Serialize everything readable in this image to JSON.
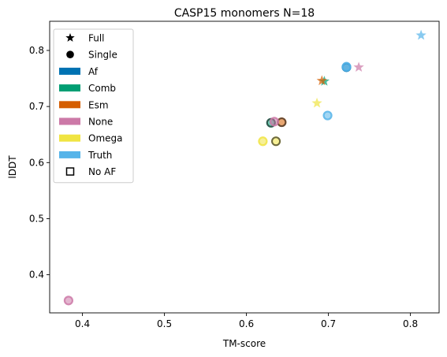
{
  "chart_data": {
    "type": "scatter",
    "title": "CASP15 monomers N=18",
    "xlabel": "TM-score",
    "ylabel": "lDDT",
    "xlim": [
      0.36,
      0.835
    ],
    "ylim": [
      0.332,
      0.852
    ],
    "xticks": [
      0.4,
      0.5,
      0.6,
      0.7,
      0.8
    ],
    "yticks": [
      0.4,
      0.5,
      0.6,
      0.7,
      0.8
    ],
    "grid": false,
    "legend_position": "top-left",
    "legend": [
      {
        "label": "Full",
        "kind": "marker",
        "marker": "star"
      },
      {
        "label": "Single",
        "kind": "marker",
        "marker": "circle"
      },
      {
        "label": "Af",
        "kind": "patch",
        "color": "#0072b2"
      },
      {
        "label": "Comb",
        "kind": "patch",
        "color": "#009e73"
      },
      {
        "label": "Esm",
        "kind": "patch",
        "color": "#d55e00"
      },
      {
        "label": "None",
        "kind": "patch",
        "color": "#cc79a7"
      },
      {
        "label": "Omega",
        "kind": "patch",
        "color": "#f0e442"
      },
      {
        "label": "Truth",
        "kind": "patch",
        "color": "#56b4e9"
      },
      {
        "label": "No AF",
        "kind": "marker",
        "marker": "square-outline"
      }
    ],
    "series": [
      {
        "name": "Af",
        "color": "#0072b2",
        "points": [
          {
            "x": 0.722,
            "y": 0.77,
            "marker": "circle"
          }
        ]
      },
      {
        "name": "Comb",
        "color": "#009e73",
        "points": [
          {
            "x": 0.695,
            "y": 0.745,
            "marker": "star"
          },
          {
            "x": 0.63,
            "y": 0.671,
            "marker": "circle",
            "no_af": true
          }
        ]
      },
      {
        "name": "Esm",
        "color": "#d55e00",
        "points": [
          {
            "x": 0.692,
            "y": 0.746,
            "marker": "star"
          },
          {
            "x": 0.643,
            "y": 0.672,
            "marker": "circle",
            "no_af": true
          }
        ]
      },
      {
        "name": "None",
        "color": "#cc79a7",
        "points": [
          {
            "x": 0.737,
            "y": 0.77,
            "marker": "star"
          },
          {
            "x": 0.634,
            "y": 0.673,
            "marker": "circle"
          },
          {
            "x": 0.383,
            "y": 0.354,
            "marker": "circle"
          }
        ]
      },
      {
        "name": "Omega",
        "color": "#f0e442",
        "points": [
          {
            "x": 0.686,
            "y": 0.706,
            "marker": "star"
          },
          {
            "x": 0.62,
            "y": 0.638,
            "marker": "circle"
          },
          {
            "x": 0.636,
            "y": 0.638,
            "marker": "circle",
            "no_af": true
          }
        ]
      },
      {
        "name": "Truth",
        "color": "#56b4e9",
        "points": [
          {
            "x": 0.813,
            "y": 0.827,
            "marker": "star"
          },
          {
            "x": 0.699,
            "y": 0.684,
            "marker": "circle"
          },
          {
            "x": 0.722,
            "y": 0.771,
            "marker": "circle"
          }
        ]
      }
    ]
  }
}
